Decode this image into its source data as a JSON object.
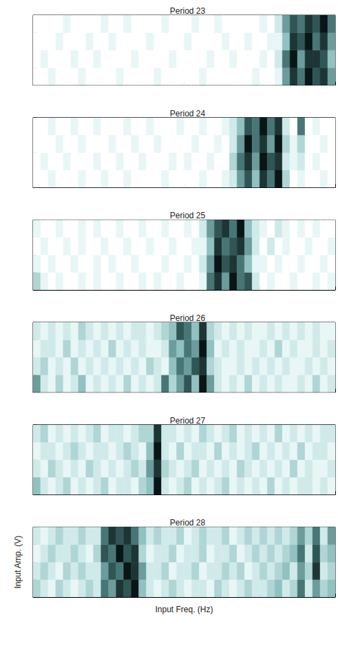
{
  "chart_data": [
    {
      "type": "heatmap",
      "title": "Period 23",
      "xlim": [
        0,
        40
      ],
      "ylim": [
        0,
        4
      ],
      "xticks": [
        0,
        10,
        20,
        30,
        40
      ],
      "yticks": [
        0,
        1,
        2,
        3,
        4
      ],
      "tick_labels": false,
      "x_bins": [
        0,
        1,
        2,
        3,
        4,
        5,
        6,
        7,
        8,
        9,
        10,
        11,
        12,
        13,
        14,
        15,
        16,
        17,
        18,
        19,
        20,
        21,
        22,
        23,
        24,
        25,
        26,
        27,
        28,
        29,
        30,
        31,
        32,
        33,
        34,
        35,
        36,
        37,
        38,
        39,
        40
      ],
      "y_bins": [
        0,
        1,
        2,
        3,
        4
      ],
      "zlim": [
        0,
        9
      ],
      "cells": [
        [
          0,
          0,
          1,
          0,
          0,
          0,
          1,
          0,
          0,
          0,
          0,
          1,
          0,
          0,
          0,
          0,
          1,
          0,
          0,
          0,
          0,
          0,
          1,
          0,
          0,
          0,
          0,
          0,
          0,
          1,
          0,
          0,
          1,
          5,
          8,
          6,
          9,
          7,
          8,
          5
        ],
        [
          0,
          1,
          0,
          0,
          0,
          1,
          0,
          0,
          1,
          0,
          0,
          0,
          0,
          1,
          0,
          0,
          0,
          0,
          1,
          0,
          0,
          0,
          0,
          1,
          0,
          0,
          1,
          0,
          0,
          0,
          1,
          0,
          2,
          6,
          9,
          5,
          8,
          8,
          7,
          4
        ],
        [
          0,
          0,
          0,
          1,
          0,
          0,
          0,
          1,
          0,
          0,
          1,
          0,
          0,
          0,
          0,
          1,
          0,
          0,
          0,
          0,
          1,
          0,
          0,
          0,
          0,
          1,
          0,
          0,
          1,
          0,
          0,
          1,
          1,
          4,
          8,
          7,
          9,
          6,
          8,
          5
        ],
        [
          0,
          0,
          0,
          0,
          1,
          0,
          0,
          0,
          0,
          1,
          0,
          0,
          1,
          0,
          0,
          0,
          0,
          1,
          0,
          0,
          0,
          1,
          0,
          0,
          1,
          0,
          0,
          0,
          0,
          0,
          1,
          0,
          2,
          5,
          7,
          6,
          8,
          7,
          9,
          6
        ]
      ]
    },
    {
      "type": "heatmap",
      "title": "Period 24",
      "xlim": [
        0,
        40
      ],
      "ylim": [
        0,
        4
      ],
      "xticks": [
        0,
        10,
        20,
        30,
        40
      ],
      "yticks": [
        0,
        1,
        2,
        3,
        4
      ],
      "tick_labels": false,
      "x_bins": [
        0,
        1,
        2,
        3,
        4,
        5,
        6,
        7,
        8,
        9,
        10,
        11,
        12,
        13,
        14,
        15,
        16,
        17,
        18,
        19,
        20,
        21,
        22,
        23,
        24,
        25,
        26,
        27,
        28,
        29,
        30,
        31,
        32,
        33,
        34,
        35,
        36,
        37,
        38,
        39,
        40
      ],
      "y_bins": [
        0,
        1,
        2,
        3,
        4
      ],
      "zlim": [
        0,
        9
      ],
      "cells": [
        [
          0,
          0,
          1,
          0,
          0,
          0,
          1,
          0,
          0,
          1,
          0,
          0,
          1,
          0,
          0,
          0,
          0,
          1,
          0,
          0,
          0,
          0,
          1,
          0,
          0,
          1,
          2,
          5,
          7,
          4,
          8,
          6,
          9,
          3,
          0,
          1,
          0,
          0,
          1,
          0
        ],
        [
          0,
          1,
          0,
          0,
          1,
          0,
          0,
          0,
          1,
          0,
          0,
          1,
          0,
          0,
          1,
          0,
          0,
          0,
          1,
          0,
          1,
          0,
          0,
          1,
          0,
          0,
          3,
          6,
          8,
          5,
          9,
          7,
          8,
          2,
          1,
          2,
          0,
          1,
          0,
          0
        ],
        [
          0,
          0,
          0,
          1,
          0,
          0,
          1,
          0,
          0,
          0,
          1,
          0,
          0,
          1,
          0,
          0,
          1,
          0,
          0,
          0,
          0,
          1,
          0,
          0,
          1,
          0,
          2,
          5,
          9,
          6,
          8,
          5,
          9,
          3,
          1,
          3,
          0,
          0,
          1,
          0
        ],
        [
          0,
          0,
          1,
          0,
          0,
          1,
          0,
          0,
          1,
          0,
          0,
          0,
          1,
          0,
          0,
          1,
          0,
          0,
          0,
          1,
          0,
          0,
          1,
          0,
          0,
          1,
          2,
          4,
          7,
          6,
          9,
          6,
          8,
          2,
          0,
          6,
          0,
          1,
          0,
          0
        ]
      ]
    },
    {
      "type": "heatmap",
      "title": "Period 25",
      "xlim": [
        0,
        40
      ],
      "ylim": [
        0,
        4
      ],
      "xticks": [
        0,
        10,
        20,
        30,
        40
      ],
      "yticks": [
        0,
        1,
        2,
        3,
        4
      ],
      "tick_labels": false,
      "x_bins": [
        0,
        1,
        2,
        3,
        4,
        5,
        6,
        7,
        8,
        9,
        10,
        11,
        12,
        13,
        14,
        15,
        16,
        17,
        18,
        19,
        20,
        21,
        22,
        23,
        24,
        25,
        26,
        27,
        28,
        29,
        30,
        31,
        32,
        33,
        34,
        35,
        36,
        37,
        38,
        39,
        40
      ],
      "y_bins": [
        0,
        1,
        2,
        3,
        4
      ],
      "zlim": [
        0,
        9
      ],
      "cells": [
        [
          3,
          1,
          0,
          1,
          0,
          0,
          1,
          0,
          1,
          0,
          0,
          1,
          0,
          0,
          1,
          0,
          1,
          0,
          0,
          1,
          0,
          0,
          1,
          6,
          8,
          5,
          9,
          6,
          7,
          2,
          0,
          1,
          0,
          0,
          1,
          0,
          0,
          1,
          0,
          1
        ],
        [
          1,
          0,
          1,
          0,
          0,
          1,
          0,
          0,
          1,
          0,
          1,
          0,
          0,
          1,
          0,
          0,
          0,
          1,
          0,
          0,
          1,
          0,
          2,
          5,
          9,
          7,
          8,
          6,
          4,
          1,
          1,
          0,
          1,
          0,
          0,
          1,
          0,
          0,
          1,
          0
        ],
        [
          0,
          1,
          0,
          0,
          1,
          0,
          1,
          0,
          0,
          1,
          0,
          0,
          1,
          0,
          0,
          1,
          0,
          0,
          1,
          0,
          0,
          1,
          1,
          4,
          8,
          6,
          7,
          8,
          5,
          2,
          0,
          2,
          0,
          1,
          0,
          0,
          1,
          0,
          0,
          1
        ],
        [
          1,
          0,
          0,
          1,
          0,
          0,
          1,
          0,
          1,
          0,
          0,
          1,
          0,
          0,
          1,
          0,
          0,
          1,
          0,
          0,
          1,
          0,
          2,
          5,
          7,
          8,
          6,
          9,
          4,
          2,
          1,
          0,
          2,
          1,
          0,
          1,
          0,
          1,
          0,
          0
        ]
      ]
    },
    {
      "type": "heatmap",
      "title": "Period 26",
      "xlim": [
        0,
        40
      ],
      "ylim": [
        0,
        4
      ],
      "xticks": [
        0,
        10,
        20,
        30,
        40
      ],
      "yticks": [
        0,
        1,
        2,
        3,
        4
      ],
      "tick_labels": false,
      "x_bins": [
        0,
        1,
        2,
        3,
        4,
        5,
        6,
        7,
        8,
        9,
        10,
        11,
        12,
        13,
        14,
        15,
        16,
        17,
        18,
        19,
        20,
        21,
        22,
        23,
        24,
        25,
        26,
        27,
        28,
        29,
        30,
        31,
        32,
        33,
        34,
        35,
        36,
        37,
        38,
        39,
        40
      ],
      "y_bins": [
        0,
        1,
        2,
        3,
        4
      ],
      "zlim": [
        0,
        9
      ],
      "cells": [
        [
          5,
          2,
          1,
          3,
          1,
          2,
          4,
          1,
          2,
          1,
          2,
          1,
          3,
          1,
          2,
          1,
          2,
          6,
          3,
          5,
          7,
          4,
          9,
          5,
          2,
          1,
          2,
          1,
          3,
          1,
          2,
          1,
          2,
          1,
          1,
          2,
          1,
          3,
          1,
          2
        ],
        [
          2,
          3,
          1,
          2,
          1,
          3,
          1,
          2,
          1,
          2,
          1,
          2,
          1,
          2,
          1,
          3,
          2,
          1,
          4,
          6,
          5,
          7,
          8,
          3,
          2,
          1,
          1,
          2,
          1,
          2,
          1,
          2,
          1,
          2,
          1,
          1,
          2,
          1,
          2,
          1
        ],
        [
          1,
          2,
          2,
          1,
          3,
          1,
          2,
          1,
          2,
          1,
          3,
          1,
          2,
          1,
          2,
          1,
          1,
          2,
          5,
          4,
          6,
          5,
          9,
          4,
          1,
          2,
          1,
          2,
          1,
          1,
          2,
          1,
          3,
          1,
          2,
          1,
          1,
          2,
          1,
          2
        ],
        [
          2,
          1,
          2,
          1,
          2,
          1,
          3,
          2,
          1,
          2,
          1,
          2,
          1,
          2,
          2,
          1,
          2,
          3,
          4,
          7,
          6,
          4,
          8,
          3,
          2,
          1,
          2,
          1,
          2,
          1,
          1,
          2,
          1,
          2,
          1,
          2,
          1,
          2,
          1,
          1
        ]
      ]
    },
    {
      "type": "heatmap",
      "title": "Period 27",
      "xlim": [
        0,
        40
      ],
      "ylim": [
        0,
        4
      ],
      "xticks": [
        0,
        10,
        20,
        30,
        40
      ],
      "yticks": [
        0,
        1,
        2,
        3,
        4
      ],
      "tick_labels": false,
      "x_bins": [
        0,
        1,
        2,
        3,
        4,
        5,
        6,
        7,
        8,
        9,
        10,
        11,
        12,
        13,
        14,
        15,
        16,
        17,
        18,
        19,
        20,
        21,
        22,
        23,
        24,
        25,
        26,
        27,
        28,
        29,
        30,
        31,
        32,
        33,
        34,
        35,
        36,
        37,
        38,
        39,
        40
      ],
      "y_bins": [
        0,
        1,
        2,
        3,
        4
      ],
      "zlim": [
        0,
        9
      ],
      "cells": [
        [
          4,
          2,
          1,
          2,
          3,
          1,
          2,
          1,
          2,
          3,
          1,
          2,
          2,
          1,
          3,
          4,
          9,
          2,
          1,
          2,
          3,
          1,
          2,
          1,
          2,
          3,
          1,
          2,
          1,
          2,
          1,
          3,
          1,
          2,
          1,
          2,
          2,
          1,
          2,
          1
        ],
        [
          2,
          1,
          3,
          2,
          1,
          2,
          1,
          3,
          2,
          1,
          2,
          1,
          2,
          3,
          2,
          5,
          8,
          3,
          2,
          1,
          2,
          3,
          1,
          2,
          1,
          2,
          1,
          3,
          2,
          1,
          2,
          1,
          2,
          1,
          3,
          1,
          2,
          1,
          1,
          2
        ],
        [
          1,
          2,
          2,
          1,
          2,
          3,
          2,
          1,
          2,
          2,
          1,
          2,
          3,
          2,
          1,
          4,
          9,
          2,
          1,
          3,
          1,
          2,
          2,
          1,
          3,
          1,
          2,
          1,
          2,
          3,
          1,
          2,
          1,
          2,
          1,
          3,
          1,
          2,
          2,
          1
        ],
        [
          2,
          3,
          1,
          2,
          1,
          2,
          1,
          2,
          3,
          1,
          2,
          2,
          1,
          2,
          3,
          3,
          8,
          2,
          2,
          1,
          2,
          1,
          3,
          2,
          1,
          2,
          3,
          1,
          2,
          1,
          2,
          1,
          3,
          1,
          2,
          1,
          2,
          1,
          2,
          2
        ]
      ]
    },
    {
      "type": "heatmap",
      "title": "Period 28",
      "xlabel": "Input Freq. (Hz)",
      "ylabel": "Input Amp. (V)",
      "xlim": [
        0,
        40
      ],
      "ylim": [
        0,
        4
      ],
      "xticks": [
        0,
        10,
        20,
        30,
        40
      ],
      "yticks": [
        0,
        1,
        2,
        3,
        4
      ],
      "tick_labels": false,
      "x_bins": [
        0,
        1,
        2,
        3,
        4,
        5,
        6,
        7,
        8,
        9,
        10,
        11,
        12,
        13,
        14,
        15,
        16,
        17,
        18,
        19,
        20,
        21,
        22,
        23,
        24,
        25,
        26,
        27,
        28,
        29,
        30,
        31,
        32,
        33,
        34,
        35,
        36,
        37,
        38,
        39,
        40
      ],
      "y_bins": [
        0,
        1,
        2,
        3,
        4
      ],
      "zlim": [
        0,
        9
      ],
      "cells": [
        [
          3,
          2,
          1,
          3,
          2,
          1,
          2,
          3,
          2,
          6,
          5,
          8,
          7,
          9,
          4,
          2,
          1,
          2,
          3,
          2,
          1,
          2,
          2,
          1,
          3,
          2,
          1,
          2,
          3,
          2,
          2,
          3,
          4,
          2,
          3,
          6,
          2,
          5,
          3,
          4
        ],
        [
          2,
          3,
          2,
          1,
          3,
          2,
          3,
          2,
          2,
          5,
          7,
          6,
          9,
          8,
          5,
          2,
          2,
          3,
          1,
          2,
          2,
          3,
          1,
          2,
          2,
          3,
          2,
          3,
          1,
          2,
          3,
          2,
          3,
          4,
          2,
          5,
          3,
          8,
          2,
          3
        ],
        [
          1,
          2,
          3,
          2,
          2,
          3,
          2,
          1,
          3,
          7,
          6,
          9,
          7,
          8,
          3,
          1,
          2,
          2,
          3,
          1,
          2,
          2,
          3,
          1,
          2,
          2,
          3,
          1,
          2,
          3,
          2,
          3,
          2,
          3,
          4,
          6,
          2,
          7,
          3,
          4
        ],
        [
          2,
          1,
          2,
          3,
          2,
          2,
          3,
          2,
          2,
          6,
          8,
          7,
          8,
          6,
          4,
          2,
          3,
          2,
          2,
          3,
          1,
          2,
          3,
          2,
          2,
          3,
          1,
          2,
          3,
          2,
          3,
          2,
          3,
          2,
          3,
          5,
          3,
          6,
          2,
          5
        ]
      ]
    }
  ]
}
